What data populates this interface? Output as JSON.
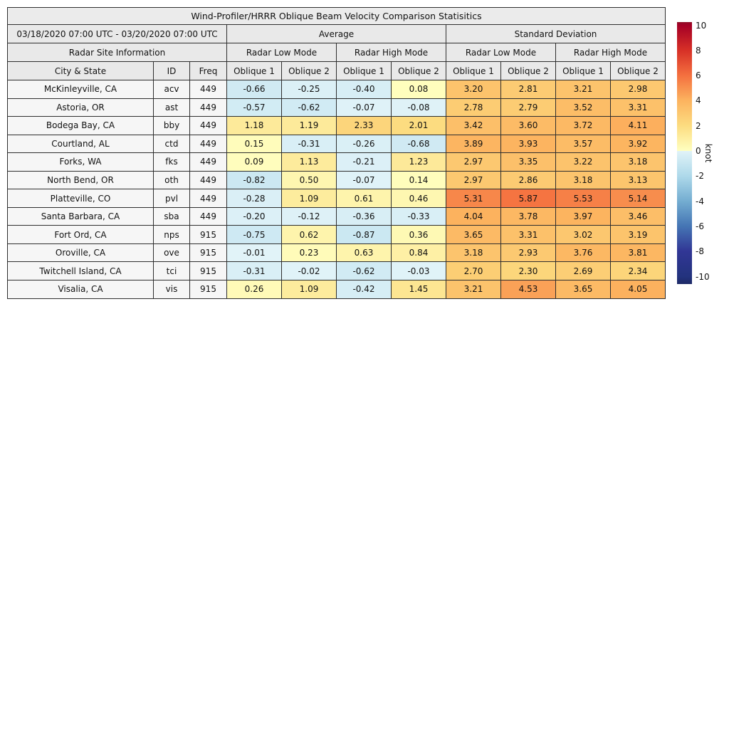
{
  "title": "Wind-Profiler/HRRR Oblique Beam Velocity Comparison Statisitics",
  "header": {
    "period": "03/18/2020 07:00 UTC - 03/20/2020 07:00 UTC",
    "average": "Average",
    "std_dev": "Standard Deviation",
    "site_info": "Radar Site Information",
    "modes": [
      "Radar Low Mode",
      "Radar High Mode",
      "Radar Low Mode",
      "Radar High Mode"
    ],
    "columns": [
      "City & State",
      "ID",
      "Freq",
      "Oblique 1",
      "Oblique 2",
      "Oblique 1",
      "Oblique 2",
      "Oblique 1",
      "Oblique 2",
      "Oblique 1",
      "Oblique 2"
    ]
  },
  "chart_data": {
    "type": "heatmap",
    "title": "Wind-Profiler/HRRR Oblique Beam Velocity Comparison Statisitics",
    "period": "03/18/2020 07:00 UTC - 03/20/2020 07:00 UTC",
    "unit": "knot",
    "column_groups": [
      {
        "group": "Average",
        "modes": [
          "Radar Low Mode",
          "Radar High Mode"
        ],
        "beams": [
          "Oblique 1",
          "Oblique 2"
        ]
      },
      {
        "group": "Standard Deviation",
        "modes": [
          "Radar Low Mode",
          "Radar High Mode"
        ],
        "beams": [
          "Oblique 1",
          "Oblique 2"
        ]
      }
    ],
    "rows": [
      {
        "city": "McKinleyville, CA",
        "id": "acv",
        "freq": 449,
        "average": [
          -0.66,
          -0.25,
          -0.4,
          0.08
        ],
        "std_dev": [
          3.2,
          2.81,
          3.21,
          2.98
        ]
      },
      {
        "city": "Astoria, OR",
        "id": "ast",
        "freq": 449,
        "average": [
          -0.57,
          -0.62,
          -0.07,
          -0.08
        ],
        "std_dev": [
          2.78,
          2.79,
          3.52,
          3.31
        ]
      },
      {
        "city": "Bodega Bay, CA",
        "id": "bby",
        "freq": 449,
        "average": [
          1.18,
          1.19,
          2.33,
          2.01
        ],
        "std_dev": [
          3.42,
          3.6,
          3.72,
          4.11
        ]
      },
      {
        "city": "Courtland, AL",
        "id": "ctd",
        "freq": 449,
        "average": [
          0.15,
          -0.31,
          -0.26,
          -0.68
        ],
        "std_dev": [
          3.89,
          3.93,
          3.57,
          3.92
        ]
      },
      {
        "city": "Forks, WA",
        "id": "fks",
        "freq": 449,
        "average": [
          0.09,
          1.13,
          -0.21,
          1.23
        ],
        "std_dev": [
          2.97,
          3.35,
          3.22,
          3.18
        ]
      },
      {
        "city": "North Bend, OR",
        "id": "oth",
        "freq": 449,
        "average": [
          -0.82,
          0.5,
          -0.07,
          0.14
        ],
        "std_dev": [
          2.97,
          2.86,
          3.18,
          3.13
        ]
      },
      {
        "city": "Platteville, CO",
        "id": "pvl",
        "freq": 449,
        "average": [
          -0.28,
          1.09,
          0.61,
          0.46
        ],
        "std_dev": [
          5.31,
          5.87,
          5.53,
          5.14
        ]
      },
      {
        "city": "Santa Barbara, CA",
        "id": "sba",
        "freq": 449,
        "average": [
          -0.2,
          -0.12,
          -0.36,
          -0.33
        ],
        "std_dev": [
          4.04,
          3.78,
          3.97,
          3.46
        ]
      },
      {
        "city": "Fort Ord, CA",
        "id": "nps",
        "freq": 915,
        "average": [
          -0.75,
          0.62,
          -0.87,
          0.36
        ],
        "std_dev": [
          3.65,
          3.31,
          3.02,
          3.19
        ]
      },
      {
        "city": "Oroville, CA",
        "id": "ove",
        "freq": 915,
        "average": [
          -0.01,
          0.23,
          0.63,
          0.84
        ],
        "std_dev": [
          3.18,
          2.93,
          3.76,
          3.81
        ]
      },
      {
        "city": "Twitchell Island, CA",
        "id": "tci",
        "freq": 915,
        "average": [
          -0.31,
          -0.02,
          -0.62,
          -0.03
        ],
        "std_dev": [
          2.7,
          2.3,
          2.69,
          2.34
        ]
      },
      {
        "city": "Visalia, CA",
        "id": "vis",
        "freq": 915,
        "average": [
          0.26,
          1.09,
          -0.42,
          1.45
        ],
        "std_dev": [
          3.21,
          4.53,
          3.65,
          4.05
        ]
      }
    ],
    "colorbar": {
      "label": "knot",
      "ticks": [
        10,
        8,
        6,
        4,
        2,
        0,
        -2,
        -4,
        -6,
        -8,
        -10
      ],
      "vmin": -10,
      "vmax": 10
    }
  },
  "colormap": {
    "positive": [
      [
        0,
        "#ffffc0"
      ],
      [
        2,
        "#fcdc80"
      ],
      [
        4,
        "#fcb35f"
      ],
      [
        6,
        "#f4703f"
      ],
      [
        8,
        "#d73027"
      ],
      [
        10,
        "#a50026"
      ]
    ],
    "negative": [
      [
        0,
        "#e1f3f8"
      ],
      [
        -2,
        "#aed9ea"
      ],
      [
        -4,
        "#74add1"
      ],
      [
        -6,
        "#4575b4"
      ],
      [
        -8,
        "#313695"
      ],
      [
        -10,
        "#23337e"
      ]
    ],
    "bar_top": "#8d0d25",
    "bar_bottom": "#1e2a66"
  }
}
